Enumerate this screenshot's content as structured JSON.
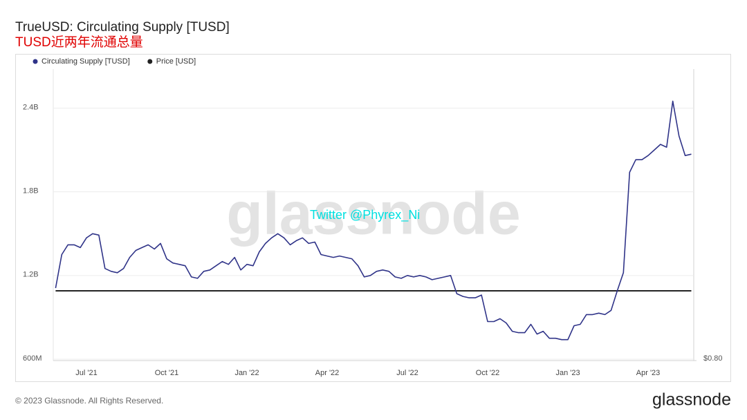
{
  "chart_data": {
    "type": "line",
    "title": "TrueUSD: Circulating Supply [TUSD]",
    "subtitle": "TUSD近两年流通总量",
    "watermark": "glassnode",
    "annotation": "Twitter @Phyrex_Ni",
    "categories": [
      null,
      null,
      null,
      null,
      null,
      "Jul '21",
      null,
      null,
      null,
      null,
      null,
      null,
      null,
      null,
      null,
      null,
      null,
      null,
      "Oct '21",
      null,
      null,
      null,
      null,
      null,
      null,
      null,
      null,
      null,
      null,
      null,
      null,
      "Jan '22",
      null,
      null,
      null,
      null,
      null,
      null,
      null,
      null,
      null,
      null,
      null,
      null,
      "Apr '22",
      null,
      null,
      null,
      null,
      null,
      null,
      null,
      null,
      null,
      null,
      null,
      null,
      "Jul '22",
      null,
      null,
      null,
      null,
      null,
      null,
      null,
      null,
      null,
      null,
      null,
      null,
      "Oct '22",
      null,
      null,
      null,
      null,
      null,
      null,
      null,
      null,
      null,
      null,
      null,
      null,
      "Jan '23",
      null,
      null,
      null,
      null,
      null,
      null,
      null,
      null,
      null,
      null,
      null,
      null,
      "Apr '23",
      null,
      null,
      null,
      null,
      null,
      null,
      null
    ],
    "series": [
      {
        "name": "Circulating Supply [TUSD]",
        "color": "#2f3388",
        "axis": "y",
        "values": [
          1110000000.0,
          1350000000.0,
          1420000000.0,
          1420000000.0,
          1400000000.0,
          1470000000.0,
          1500000000.0,
          1490000000.0,
          1250000000.0,
          1230000000.0,
          1220000000.0,
          1250000000.0,
          1330000000.0,
          1380000000.0,
          1400000000.0,
          1420000000.0,
          1390000000.0,
          1430000000.0,
          1320000000.0,
          1290000000.0,
          1280000000.0,
          1270000000.0,
          1190000000.0,
          1180000000.0,
          1230000000.0,
          1240000000.0,
          1270000000.0,
          1300000000.0,
          1280000000.0,
          1330000000.0,
          1240000000.0,
          1280000000.0,
          1270000000.0,
          1370000000.0,
          1430000000.0,
          1470000000.0,
          1500000000.0,
          1470000000.0,
          1420000000.0,
          1450000000.0,
          1470000000.0,
          1430000000.0,
          1440000000.0,
          1350000000.0,
          1340000000.0,
          1330000000.0,
          1340000000.0,
          1330000000.0,
          1320000000.0,
          1270000000.0,
          1190000000.0,
          1200000000.0,
          1230000000.0,
          1240000000.0,
          1230000000.0,
          1190000000.0,
          1180000000.0,
          1200000000.0,
          1190000000.0,
          1200000000.0,
          1190000000.0,
          1170000000.0,
          1180000000.0,
          1190000000.0,
          1200000000.0,
          1070000000.0,
          1050000000.0,
          1040000000.0,
          1040000000.0,
          1060000000.0,
          870000000.0,
          870000000.0,
          890000000.0,
          860000000.0,
          800000000.0,
          790000000.0,
          790000000.0,
          850000000.0,
          780000000.0,
          800000000.0,
          750000000.0,
          750000000.0,
          740000000.0,
          740000000.0,
          840000000.0,
          850000000.0,
          920000000.0,
          920000000.0,
          930000000.0,
          920000000.0,
          950000000.0,
          1090000000.0,
          1220000000.0,
          1940000000.0,
          2030000000.0,
          2030000000.0,
          2060000000.0,
          2100000000.0,
          2140000000.0,
          2120000000.0,
          2450000000.0,
          2200000000.0,
          2060000000.0,
          2070000000.0
        ]
      },
      {
        "name": "Price [USD]",
        "color": "#222222",
        "axis": "y2",
        "values": [
          1,
          1,
          1,
          1,
          1,
          1,
          1,
          1,
          1,
          1,
          1,
          1,
          1,
          1,
          1,
          1,
          1,
          1,
          1,
          1,
          1,
          1,
          1,
          1,
          1,
          1,
          1,
          1,
          1,
          1,
          1,
          1,
          1,
          1,
          1,
          1,
          1,
          1,
          1,
          1,
          1,
          1,
          1,
          1,
          1,
          1,
          1,
          1,
          1,
          1,
          1,
          1,
          1,
          1,
          1,
          1,
          1,
          1,
          1,
          1,
          1,
          1,
          1,
          1,
          1,
          1,
          1,
          1,
          1,
          1,
          1,
          1,
          1,
          1,
          1,
          1,
          1,
          1,
          1,
          1,
          1,
          1,
          1,
          1,
          1,
          1,
          1,
          1,
          1,
          1,
          1,
          1,
          1,
          1,
          1,
          1,
          1,
          1,
          1,
          1,
          1,
          1,
          1,
          1
        ]
      }
    ],
    "ylim": [
      590000000,
      2680000000
    ],
    "yticks": [
      {
        "value": 600000000,
        "label": "600M"
      },
      {
        "value": 1200000000,
        "label": "1.2B"
      },
      {
        "value": 1800000000,
        "label": "1.8B"
      },
      {
        "value": 2400000000,
        "label": "2.4B"
      }
    ],
    "y2lim": [
      0.8,
      1.636
    ],
    "y2ticks": [
      {
        "value": 0.8,
        "label": "$0.80"
      }
    ],
    "grid": true,
    "legend": "top-left"
  },
  "footer": {
    "copyright": "© 2023 Glassnode. All Rights Reserved.",
    "logo": "glassnode"
  }
}
